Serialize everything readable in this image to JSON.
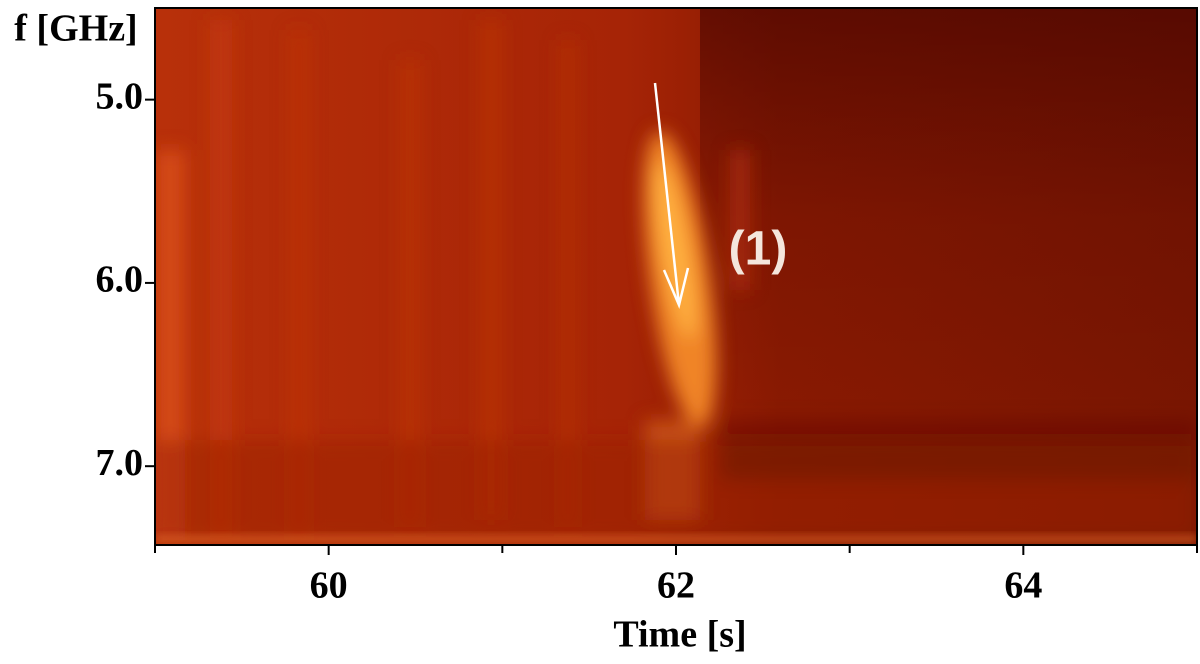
{
  "chart_data": {
    "type": "heatmap",
    "xlabel": "Time [s]",
    "ylabel": "f [GHz]",
    "annotation": "(1)",
    "xlim": [
      59,
      65
    ],
    "xticks": [
      60,
      62,
      64
    ],
    "xminor_ticks": [
      59,
      61,
      63,
      65
    ],
    "ylim": [
      4.5,
      7.43
    ],
    "yticks": [
      {
        "value": 5,
        "label": "5.0"
      },
      {
        "value": 6,
        "label": "6.0"
      },
      {
        "value": 7,
        "label": "7.0"
      }
    ],
    "y_inverted": true
  }
}
